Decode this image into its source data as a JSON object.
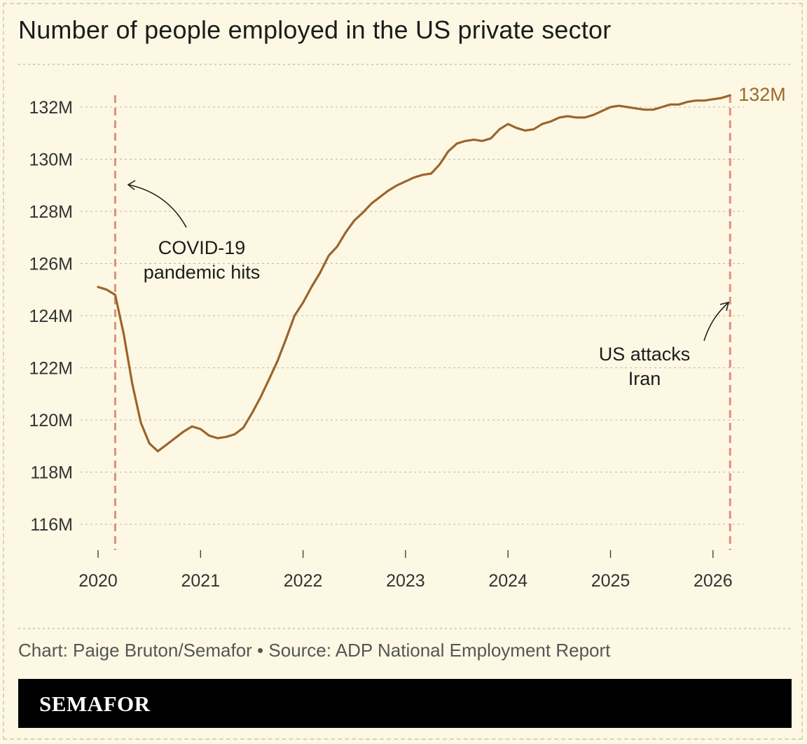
{
  "title": "Number of people employed in the US private sector",
  "footer": {
    "source": "Chart: Paige Bruton/Semafor • Source: ADP National Employment Report",
    "brand": "SEMAFOR"
  },
  "colors": {
    "background": "#fdf8e4",
    "line": "#9b652c",
    "event_line": "#e0907a",
    "grid": "#bdb8a8",
    "end_label": "#9a6a2a"
  },
  "chart_data": {
    "type": "line",
    "xlim": [
      2020.0,
      2026.2
    ],
    "ylim": [
      115,
      133
    ],
    "x_ticks": [
      2020,
      2021,
      2022,
      2023,
      2024,
      2025,
      2026
    ],
    "x_tick_labels": [
      "2020",
      "2021",
      "2022",
      "2023",
      "2024",
      "2025",
      "2026"
    ],
    "y_ticks": [
      116,
      118,
      120,
      122,
      124,
      126,
      128,
      130,
      132
    ],
    "y_tick_labels": [
      "116M",
      "118M",
      "120M",
      "122M",
      "124M",
      "126M",
      "128M",
      "130M",
      "132M"
    ],
    "grid": "horizontal-dotted",
    "series": [
      {
        "unit": "millions",
        "x": [
          2020.0,
          2020.083,
          2020.167,
          2020.25,
          2020.333,
          2020.417,
          2020.5,
          2020.583,
          2020.667,
          2020.75,
          2020.833,
          2020.917,
          2021.0,
          2021.083,
          2021.167,
          2021.25,
          2021.333,
          2021.417,
          2021.5,
          2021.583,
          2021.667,
          2021.75,
          2021.833,
          2021.917,
          2022.0,
          2022.083,
          2022.167,
          2022.25,
          2022.333,
          2022.417,
          2022.5,
          2022.583,
          2022.667,
          2022.75,
          2022.833,
          2022.917,
          2023.0,
          2023.083,
          2023.167,
          2023.25,
          2023.333,
          2023.417,
          2023.5,
          2023.583,
          2023.667,
          2023.75,
          2023.833,
          2023.917,
          2024.0,
          2024.083,
          2024.167,
          2024.25,
          2024.333,
          2024.417,
          2024.5,
          2024.583,
          2024.667,
          2024.75,
          2024.833,
          2024.917,
          2025.0,
          2025.083,
          2025.167,
          2025.25,
          2025.333,
          2025.417,
          2025.5,
          2025.583,
          2025.667,
          2025.75,
          2025.833,
          2025.917,
          2026.0,
          2026.083,
          2026.167
        ],
        "y": [
          125.1,
          125.0,
          124.8,
          123.3,
          121.4,
          119.9,
          119.1,
          118.8,
          119.05,
          119.3,
          119.55,
          119.75,
          119.65,
          119.4,
          119.3,
          119.35,
          119.45,
          119.7,
          120.25,
          120.85,
          121.55,
          122.25,
          123.1,
          124.0,
          124.5,
          125.1,
          125.65,
          126.3,
          126.65,
          127.2,
          127.65,
          127.95,
          128.3,
          128.55,
          128.8,
          129.0,
          129.15,
          129.3,
          129.4,
          129.45,
          129.8,
          130.3,
          130.6,
          130.7,
          130.75,
          130.7,
          130.8,
          131.15,
          131.35,
          131.2,
          131.1,
          131.15,
          131.35,
          131.45,
          131.6,
          131.65,
          131.6,
          131.6,
          131.7,
          131.85,
          132.0,
          132.05,
          132.0,
          131.95,
          131.9,
          131.9,
          132.0,
          132.1,
          132.1,
          132.2,
          132.25,
          132.25,
          132.3,
          132.35,
          132.45
        ]
      }
    ],
    "end_label": "132M",
    "events": [
      {
        "x": 2020.167,
        "label_lines": [
          "COVID-19",
          "pandemic hits"
        ]
      },
      {
        "x": 2026.167,
        "label_lines": [
          "US attacks",
          "Iran"
        ]
      }
    ]
  }
}
